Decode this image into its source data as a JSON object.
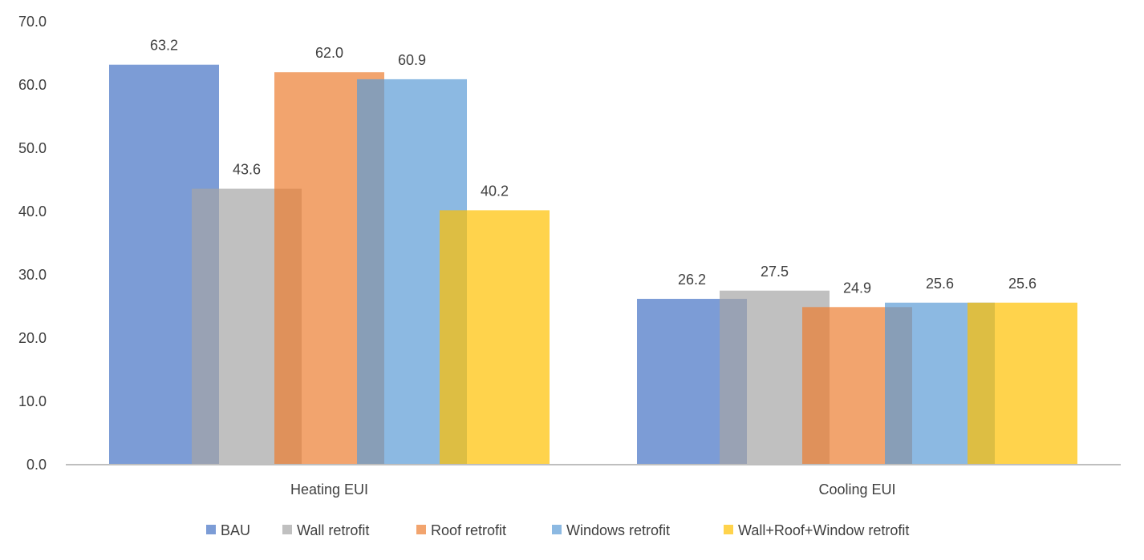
{
  "chart_data": {
    "type": "bar",
    "title": "",
    "xlabel": "",
    "ylabel": "",
    "categories": [
      "Heating EUI",
      "Cooling EUI"
    ],
    "ylim": [
      0,
      70
    ],
    "yticks": [
      "0.0",
      "10.0",
      "20.0",
      "30.0",
      "40.0",
      "50.0",
      "60.0",
      "70.0"
    ],
    "grid": false,
    "legend_position": "bottom",
    "bar_opacity": 0.7,
    "series": [
      {
        "name": "BAU",
        "values": [
          63.2,
          26.2
        ],
        "labels": [
          "63.2",
          "26.2"
        ],
        "color": "#4472C4"
      },
      {
        "name": "Wall retrofit",
        "values": [
          43.6,
          27.5
        ],
        "labels": [
          "43.6",
          "27.5"
        ],
        "color": "#A5A5A5"
      },
      {
        "name": "Roof retrofit",
        "values": [
          62.0,
          24.9
        ],
        "labels": [
          "62.0",
          "24.9"
        ],
        "color": "#ED7D31"
      },
      {
        "name": "Windows retrofit",
        "values": [
          60.9,
          25.6
        ],
        "labels": [
          "60.9",
          "25.6"
        ],
        "color": "#5B9BD5"
      },
      {
        "name": "Wall+Roof+Window retrofit",
        "values": [
          40.2,
          25.6
        ],
        "labels": [
          "40.2",
          "25.6"
        ],
        "color": "#FFC000"
      }
    ]
  }
}
